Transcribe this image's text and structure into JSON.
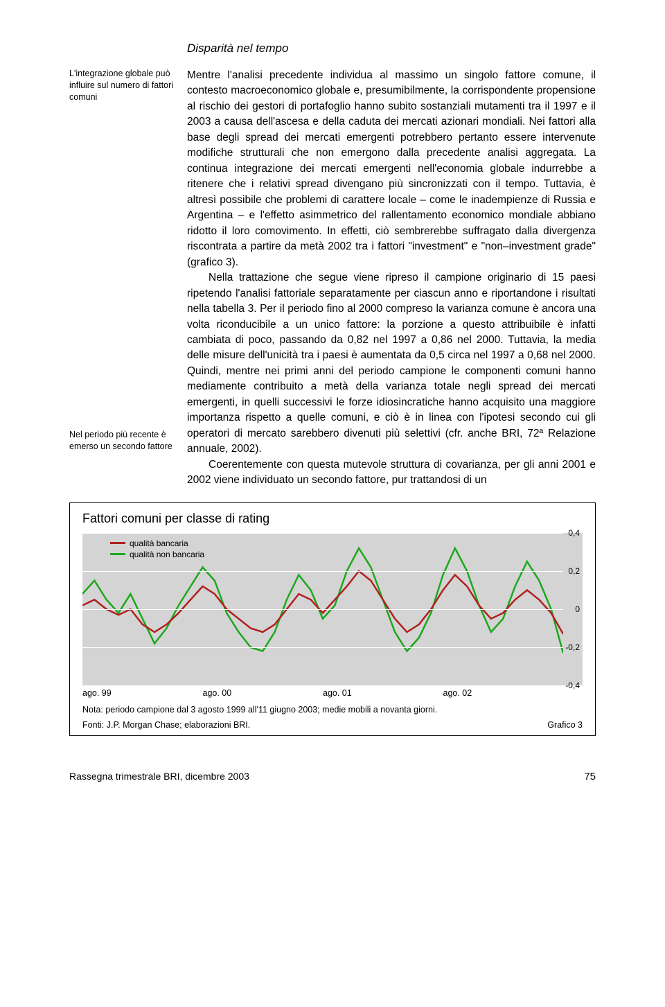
{
  "section_title": "Disparità nel tempo",
  "margin_notes": {
    "note1": "L'integrazione globale può influire sul numero di fattori comuni",
    "note2": "Nel periodo più recente è emerso un secondo fattore"
  },
  "body": {
    "para1": "Mentre l'analisi precedente individua al massimo un singolo fattore comune, il contesto macroeconomico globale e, presumibilmente, la corrispondente propensione al rischio dei gestori di portafoglio hanno subito sostanziali mutamenti tra il 1997 e il 2003 a causa dell'ascesa e della caduta dei mercati azionari mondiali. Nei fattori alla base degli spread dei mercati emergenti potrebbero pertanto essere intervenute modifiche strutturali che non emergono dalla precedente analisi aggregata. La continua integrazione dei mercati emergenti nell'economia globale indurrebbe a ritenere che i relativi spread divengano più sincronizzati con il tempo. Tuttavia, è altresì possibile che problemi di carattere locale – come le inadempienze di Russia e Argentina – e l'effetto asimmetrico del rallentamento economico mondiale abbiano ridotto il loro comovimento. In effetti, ciò sembrerebbe suffragato dalla divergenza riscontrata a partire da metà 2002 tra i fattori \"investment\" e \"non–investment grade\" (grafico 3).",
    "para2": "Nella trattazione che segue viene ripreso il campione originario di 15 paesi ripetendo l'analisi fattoriale separatamente per ciascun anno e riportandone i risultati nella tabella 3. Per il periodo fino al 2000 compreso la varianza comune è ancora una volta riconducibile a un unico fattore: la porzione a questo attribuibile è infatti cambiata di poco, passando da 0,82 nel 1997 a 0,86 nel 2000. Tuttavia, la media delle misure dell'unicità tra i paesi è aumentata da 0,5 circa nel 1997 a 0,68 nel 2000. Quindi, mentre nei primi anni del periodo campione le componenti comuni hanno mediamente contribuito a metà della varianza totale negli spread dei mercati emergenti, in quelli successivi le forze idiosincratiche hanno acquisito una maggiore importanza rispetto a quelle comuni, e ciò è in linea con l'ipotesi secondo cui gli operatori di mercato sarebbero divenuti più selettivi (cfr. anche BRI, 72ª Relazione annuale, 2002).",
    "para3": "Coerentemente con questa mutevole struttura di covarianza, per gli anni 2001 e 2002 viene individuato un secondo fattore, pur trattandosi di un"
  },
  "chart": {
    "type": "line",
    "title": "Fattori comuni per classe di rating",
    "background_color": "#d4d4d4",
    "grid_color": "#ffffff",
    "legend": [
      {
        "label": "qualità bancaria",
        "color": "#b02020"
      },
      {
        "label": "qualità non bancaria",
        "color": "#1aa81a"
      }
    ],
    "ylim": [
      -0.4,
      0.4
    ],
    "ytick_step": 0.2,
    "yticks": [
      "0,4",
      "0,2",
      "0",
      "-0,2",
      "-0,4"
    ],
    "xticks": [
      "ago. 99",
      "ago. 00",
      "ago. 01",
      "ago. 02"
    ],
    "x_values": [
      0,
      0.025,
      0.05,
      0.075,
      0.1,
      0.125,
      0.15,
      0.175,
      0.2,
      0.225,
      0.25,
      0.275,
      0.3,
      0.325,
      0.35,
      0.375,
      0.4,
      0.425,
      0.45,
      0.475,
      0.5,
      0.525,
      0.55,
      0.575,
      0.6,
      0.625,
      0.65,
      0.675,
      0.7,
      0.725,
      0.75,
      0.775,
      0.8,
      0.825,
      0.85,
      0.875,
      0.9,
      0.925,
      0.95,
      0.975,
      1.0
    ],
    "series": {
      "bancaria": {
        "color": "#b02020",
        "line_width": 2.5,
        "values": [
          0.02,
          0.05,
          0.0,
          -0.03,
          0.0,
          -0.08,
          -0.12,
          -0.08,
          -0.02,
          0.05,
          0.12,
          0.08,
          0.0,
          -0.05,
          -0.1,
          -0.12,
          -0.08,
          0.0,
          0.08,
          0.05,
          -0.02,
          0.05,
          0.12,
          0.2,
          0.15,
          0.05,
          -0.05,
          -0.12,
          -0.08,
          0.0,
          0.1,
          0.18,
          0.12,
          0.02,
          -0.05,
          -0.02,
          0.05,
          0.1,
          0.05,
          -0.02,
          -0.13
        ]
      },
      "non_bancaria": {
        "color": "#1aa81a",
        "line_width": 2.5,
        "values": [
          0.08,
          0.15,
          0.05,
          -0.02,
          0.08,
          -0.05,
          -0.18,
          -0.1,
          0.02,
          0.12,
          0.22,
          0.15,
          -0.02,
          -0.12,
          -0.2,
          -0.22,
          -0.12,
          0.05,
          0.18,
          0.1,
          -0.05,
          0.02,
          0.2,
          0.32,
          0.22,
          0.05,
          -0.12,
          -0.22,
          -0.15,
          -0.02,
          0.18,
          0.32,
          0.2,
          0.02,
          -0.12,
          -0.05,
          0.12,
          0.25,
          0.15,
          0.0,
          -0.23
        ]
      }
    },
    "note": "Nota: periodo campione dal 3 agosto 1999 all'11 giugno 2003; medie mobili a novanta giorni.",
    "sources": "Fonti: J.P. Morgan Chase; elaborazioni BRI.",
    "label": "Grafico 3"
  },
  "footer": {
    "left": "Rassegna trimestrale BRI, dicembre 2003",
    "page": "75"
  }
}
